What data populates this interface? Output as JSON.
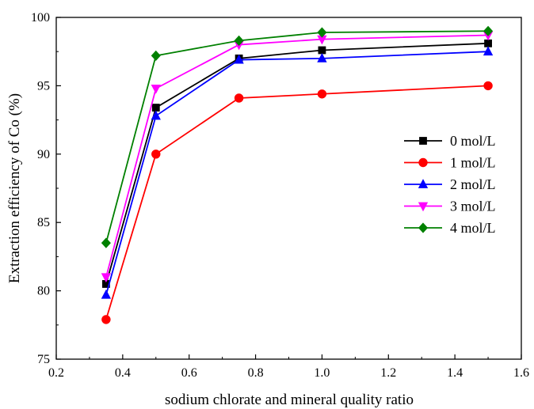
{
  "chart_data": {
    "type": "line",
    "title": "",
    "xlabel": "sodium chlorate and mineral quality ratio",
    "ylabel": "Extraction efficiency of Co (%)",
    "xlim": [
      0.2,
      1.6
    ],
    "ylim": [
      75,
      100
    ],
    "xticks": [
      "0.2",
      "0.4",
      "0.6",
      "0.8",
      "1.0",
      "1.2",
      "1.4",
      "1.6"
    ],
    "yticks": [
      "75",
      "80",
      "85",
      "90",
      "95",
      "100"
    ],
    "grid": false,
    "legend_position": "right",
    "x": [
      0.35,
      0.5,
      0.75,
      1.0,
      1.5
    ],
    "series": [
      {
        "name": "0 mol/L",
        "color": "#000000",
        "marker": "square",
        "values": [
          80.5,
          93.4,
          97.0,
          97.6,
          98.1
        ]
      },
      {
        "name": "1 mol/L",
        "color": "#ff0000",
        "marker": "circle",
        "values": [
          77.9,
          90.0,
          94.1,
          94.4,
          95.0
        ]
      },
      {
        "name": "2 mol/L",
        "color": "#0000ff",
        "marker": "triangle-up",
        "values": [
          79.7,
          92.8,
          96.9,
          97.0,
          97.5
        ]
      },
      {
        "name": "3 mol/L",
        "color": "#ff00ff",
        "marker": "triangle-down",
        "values": [
          81.0,
          94.8,
          98.0,
          98.4,
          98.7
        ]
      },
      {
        "name": "4 mol/L",
        "color": "#008000",
        "marker": "diamond",
        "values": [
          83.5,
          97.2,
          98.3,
          98.9,
          99.0
        ]
      }
    ]
  }
}
